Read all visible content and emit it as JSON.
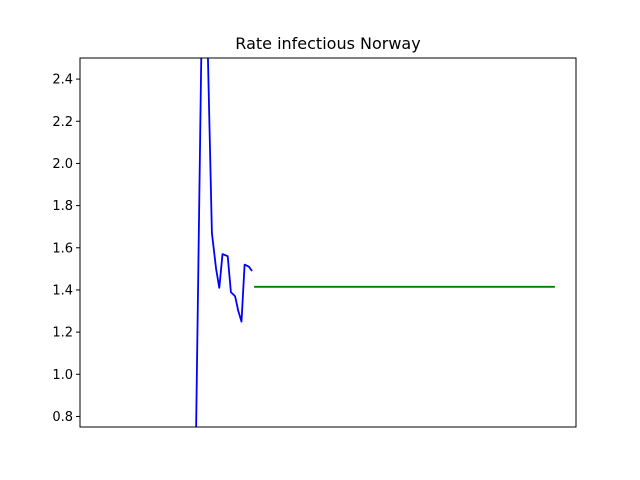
{
  "chart_data": {
    "type": "line",
    "title": "Rate infectious Norway",
    "xlabel": "",
    "ylabel": "",
    "ylim": [
      0.75,
      2.5
    ],
    "xlim": [
      0,
      94
    ],
    "yticks": [
      0.8,
      1.0,
      1.2,
      1.4,
      1.6,
      1.8,
      2.0,
      2.2,
      2.4
    ],
    "ytick_labels": [
      "0.8",
      "1.0",
      "1.2",
      "1.4",
      "1.6",
      "1.8",
      "2.0",
      "2.2",
      "2.4"
    ],
    "grid": false,
    "series": [
      {
        "color": "#0000ff",
        "x": [
          22,
          23,
          23.6,
          24.2,
          25,
          25.8,
          26.4,
          27,
          28,
          28.6,
          29.4,
          30,
          30.6,
          31.2,
          32,
          32.6
        ],
        "y": [
          0.74,
          2.55,
          2.55,
          2.55,
          1.67,
          1.5,
          1.41,
          1.57,
          1.56,
          1.39,
          1.37,
          1.3,
          1.25,
          1.52,
          1.51,
          1.49
        ]
      },
      {
        "color": "#008000",
        "x": [
          33,
          90
        ],
        "y": [
          1.415,
          1.415
        ]
      }
    ]
  }
}
